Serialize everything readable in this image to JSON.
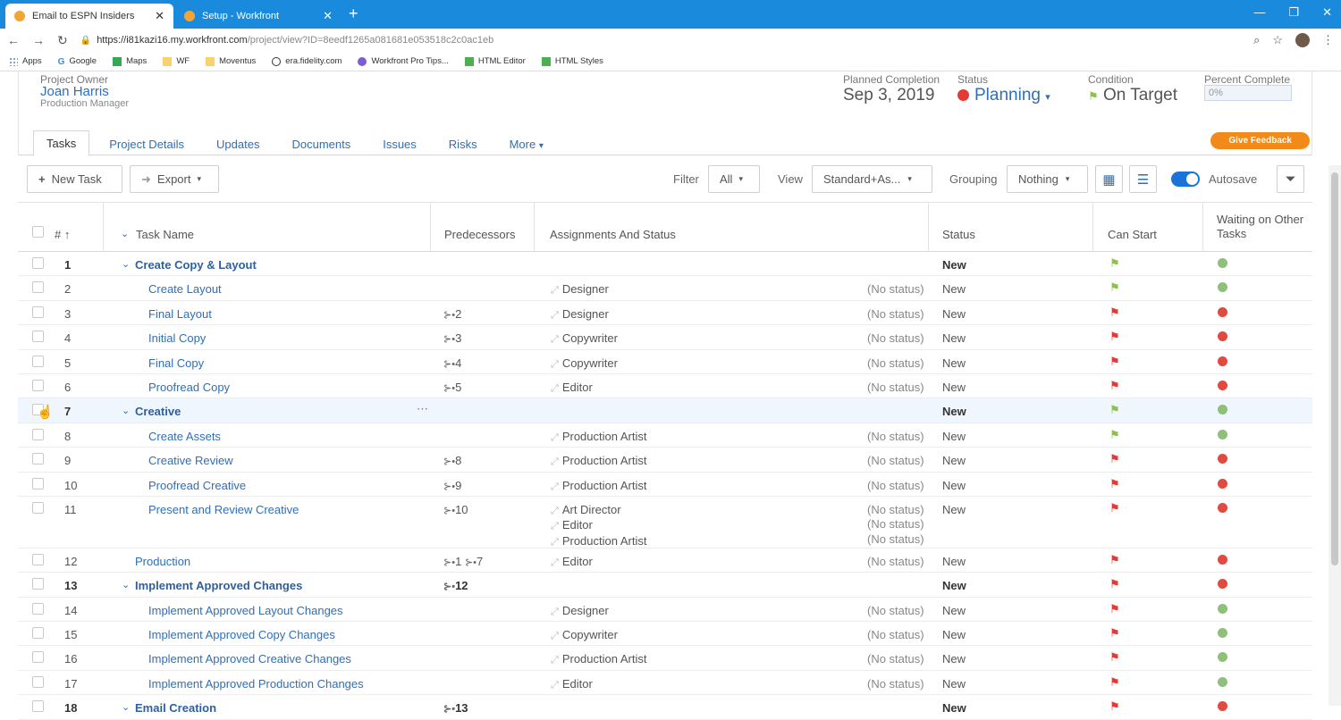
{
  "browser": {
    "tabs": [
      {
        "title": "Email to ESPN Insiders",
        "active": true
      },
      {
        "title": "Setup - Workfront",
        "active": false
      }
    ],
    "url_host": "https://i81kazi16.my.workfront.com",
    "url_path": "/project/view?ID=8eedf1265a081681e053518c2c0ac1eb",
    "bookmarks": [
      "Apps",
      "Google",
      "Maps",
      "WF",
      "Moventus",
      "era.fidelity.com",
      "Workfront Pro Tips...",
      "HTML Editor",
      "HTML Styles"
    ]
  },
  "project": {
    "owner_label": "Project Owner",
    "owner_name": "Joan Harris",
    "owner_role": "Production Manager",
    "planned_label": "Planned Completion",
    "planned_value": "Sep 3, 2019",
    "status_label": "Status",
    "status_value": "Planning",
    "condition_label": "Condition",
    "condition_value": "On Target",
    "percent_label": "Percent Complete",
    "percent_value": "0%",
    "tabs": [
      "Tasks",
      "Project Details",
      "Updates",
      "Documents",
      "Issues",
      "Risks",
      "More"
    ],
    "feedback": "Give Feedback"
  },
  "toolbar": {
    "new_task": "New Task",
    "export": "Export",
    "filter_label": "Filter",
    "filter_value": "All",
    "view_label": "View",
    "view_value": "Standard+As...",
    "grouping_label": "Grouping",
    "grouping_value": "Nothing",
    "autosave": "Autosave"
  },
  "table": {
    "headers": {
      "num": "#",
      "task": "Task Name",
      "pred": "Predecessors",
      "assign": "Assignments And Status",
      "status": "Status",
      "canstart": "Can Start",
      "waiting": "Waiting on Other Tasks"
    },
    "rows": [
      {
        "num": "1",
        "name": "Create Copy & Layout",
        "parent": true,
        "pred": "",
        "assign": "",
        "nostatus": "",
        "status": "New",
        "flag": "green",
        "wait": "green"
      },
      {
        "num": "2",
        "name": "Create Layout",
        "pred": "",
        "assign": "Designer",
        "nostatus": "(No status)",
        "status": "New",
        "flag": "green",
        "wait": "green"
      },
      {
        "num": "3",
        "name": "Final Layout",
        "pred": "2",
        "assign": "Designer",
        "nostatus": "(No status)",
        "status": "New",
        "flag": "red",
        "wait": "red"
      },
      {
        "num": "4",
        "name": "Initial Copy",
        "pred": "3",
        "assign": "Copywriter",
        "nostatus": "(No status)",
        "status": "New",
        "flag": "red",
        "wait": "red"
      },
      {
        "num": "5",
        "name": "Final Copy",
        "pred": "4",
        "assign": "Copywriter",
        "nostatus": "(No status)",
        "status": "New",
        "flag": "red",
        "wait": "red"
      },
      {
        "num": "6",
        "name": "Proofread Copy",
        "pred": "5",
        "assign": "Editor",
        "nostatus": "(No status)",
        "status": "New",
        "flag": "red",
        "wait": "red"
      },
      {
        "num": "7",
        "name": "Creative",
        "parent": true,
        "highlight": true,
        "pred": "",
        "assign": "",
        "nostatus": "",
        "status": "New",
        "flag": "green",
        "wait": "green"
      },
      {
        "num": "8",
        "name": "Create Assets",
        "pred": "",
        "assign": "Production Artist",
        "nostatus": "(No status)",
        "status": "New",
        "flag": "green",
        "wait": "green"
      },
      {
        "num": "9",
        "name": "Creative Review",
        "pred": "8",
        "assign": "Production Artist",
        "nostatus": "(No status)",
        "status": "New",
        "flag": "red",
        "wait": "red"
      },
      {
        "num": "10",
        "name": "Proofread Creative",
        "pred": "9",
        "assign": "Production Artist",
        "nostatus": "(No status)",
        "status": "New",
        "flag": "red",
        "wait": "red"
      },
      {
        "num": "11",
        "name": "Present and Review Creative",
        "pred": "10",
        "assign_multi": [
          "Art Director",
          "Editor",
          "Production Artist"
        ],
        "nostatus_multi": [
          "(No status)",
          "(No status)",
          "(No status)"
        ],
        "status": "New",
        "flag": "red",
        "wait": "red"
      },
      {
        "num": "12",
        "name": "Production",
        "toplevel": true,
        "pred": "1",
        "pred2": "7",
        "assign": "Editor",
        "nostatus": "(No status)",
        "status": "New",
        "flag": "red",
        "wait": "red"
      },
      {
        "num": "13",
        "name": "Implement Approved Changes",
        "parent": true,
        "pred": "12",
        "assign": "",
        "nostatus": "",
        "status": "New",
        "flag": "red",
        "wait": "red"
      },
      {
        "num": "14",
        "name": "Implement Approved Layout Changes",
        "pred": "",
        "assign": "Designer",
        "nostatus": "(No status)",
        "status": "New",
        "flag": "red",
        "wait": "green"
      },
      {
        "num": "15",
        "name": "Implement Approved Copy Changes",
        "pred": "",
        "assign": "Copywriter",
        "nostatus": "(No status)",
        "status": "New",
        "flag": "red",
        "wait": "green"
      },
      {
        "num": "16",
        "name": "Implement Approved Creative Changes",
        "pred": "",
        "assign": "Production Artist",
        "nostatus": "(No status)",
        "status": "New",
        "flag": "red",
        "wait": "green"
      },
      {
        "num": "17",
        "name": "Implement Approved Production Changes",
        "pred": "",
        "assign": "Editor",
        "nostatus": "(No status)",
        "status": "New",
        "flag": "red",
        "wait": "green"
      },
      {
        "num": "18",
        "name": "Email Creation",
        "parent": true,
        "pred": "13",
        "assign": "",
        "nostatus": "",
        "status": "New",
        "flag": "red",
        "wait": "red"
      }
    ]
  }
}
